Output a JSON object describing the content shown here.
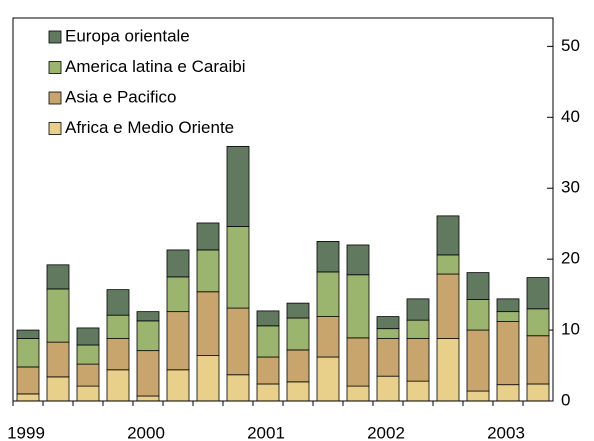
{
  "chart_data": {
    "type": "stacked_bar",
    "categories": [
      "1999",
      null,
      null,
      null,
      "2000",
      null,
      null,
      null,
      "2001",
      null,
      null,
      null,
      "2002",
      null,
      null,
      null,
      "2003",
      null
    ],
    "series": [
      {
        "name": "Africa e Medio Oriente",
        "color": "#e8d08a",
        "values": [
          1.0,
          3.4,
          2.1,
          4.4,
          0.7,
          4.4,
          6.4,
          3.7,
          2.4,
          2.7,
          6.2,
          2.1,
          3.5,
          2.8,
          8.8,
          1.4,
          2.3,
          2.4
        ]
      },
      {
        "name": "Asia e Pacifico",
        "color": "#c9a56e",
        "values": [
          3.8,
          4.9,
          3.1,
          4.4,
          6.4,
          8.2,
          9.0,
          9.4,
          3.8,
          4.5,
          5.7,
          6.8,
          5.3,
          6.0,
          9.1,
          8.6,
          8.9,
          6.8
        ]
      },
      {
        "name": "America latina e Caraibi",
        "color": "#9cb56e",
        "values": [
          4.0,
          7.5,
          2.7,
          3.3,
          4.2,
          4.9,
          5.9,
          11.5,
          4.4,
          4.5,
          6.3,
          8.9,
          1.4,
          2.6,
          2.7,
          4.3,
          1.4,
          3.8
        ]
      },
      {
        "name": "Europa orientale",
        "color": "#617a5f",
        "values": [
          1.2,
          3.4,
          2.4,
          3.6,
          1.3,
          3.8,
          3.8,
          11.3,
          2.1,
          2.1,
          4.3,
          4.2,
          1.7,
          3.0,
          5.5,
          3.8,
          1.8,
          4.4
        ]
      }
    ],
    "ylim": [
      0,
      54
    ],
    "yticks": [
      0,
      10,
      20,
      30,
      40,
      50
    ],
    "y_axis_side": "right",
    "legend": "upper left"
  }
}
